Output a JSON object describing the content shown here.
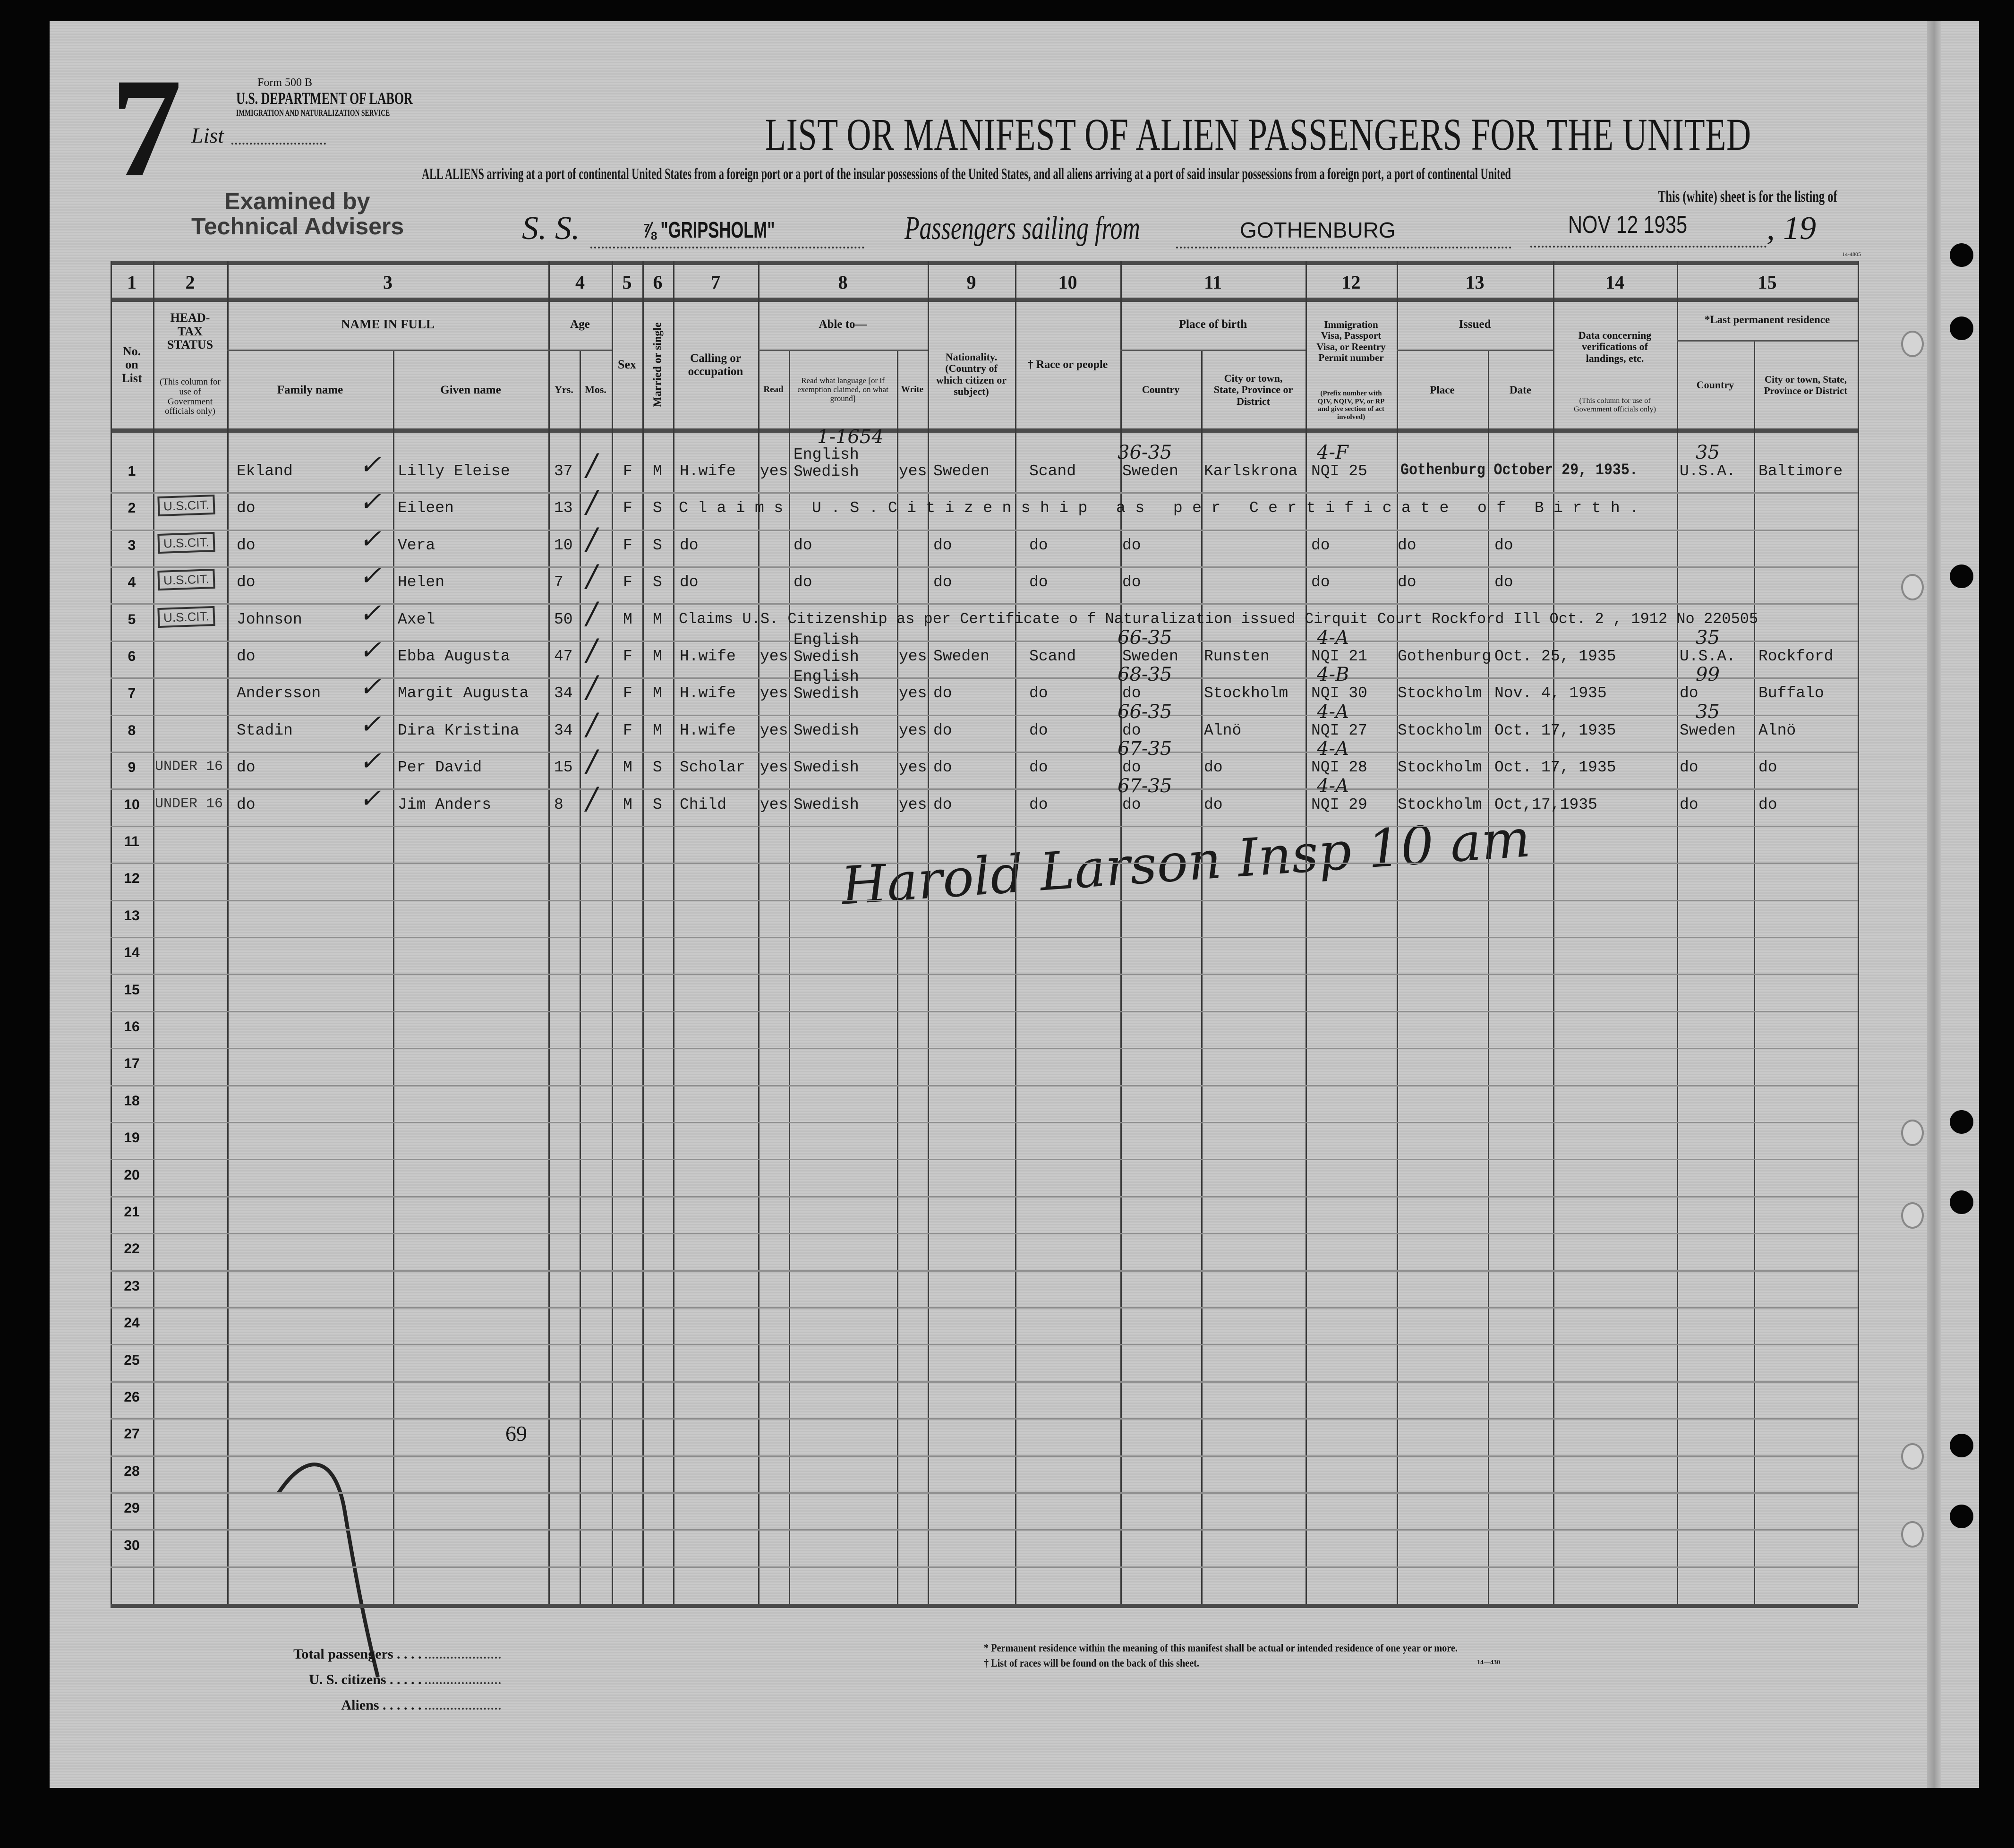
{
  "header": {
    "list_number": "7",
    "list_label": "List",
    "form_number": "Form 500 B",
    "department": "U.S. DEPARTMENT OF LABOR",
    "service": "IMMIGRATION AND NATURALIZATION SERVICE",
    "stamp_line1": "Examined by",
    "stamp_line2": "Technical Advisers",
    "title": "LIST OR MANIFEST OF ALIEN PASSENGERS FOR THE UNITED",
    "subtitle": "ALL ALIENS arriving at a port of continental United States from a foreign port or a port of the insular possessions of the United States, and all aliens arriving at a port of said insular possessions from a foreign port, a port of continental United",
    "sheet_note": "This (white) sheet is for the listing of",
    "ss_label": "S. S.",
    "ship": "⅞ \"GRIPSHOLM\"",
    "sailing_label": "Passengers sailing from",
    "port": "GOTHENBURG",
    "date": "NOV 12 1935",
    "year_label": "19",
    "form_code_top": "14-4805"
  },
  "columns": {
    "numbers": [
      "1",
      "2",
      "3",
      "4",
      "5",
      "6",
      "7",
      "8",
      "9",
      "10",
      "11",
      "12",
      "13",
      "14",
      "15"
    ],
    "no_on_list": "No. on List",
    "head_tax": "HEAD-TAX STATUS",
    "head_tax_note": "(This column for use of Government officials only)",
    "name_in_full": "NAME IN FULL",
    "family_name": "Family name",
    "given_name": "Given name",
    "age": "Age",
    "yrs": "Yrs.",
    "mos": "Mos.",
    "sex": "Sex",
    "married": "Married or single",
    "calling": "Calling or occupation",
    "able_to": "Able to—",
    "read": "Read",
    "read_language": "Read what language [or if exemption claimed, on what ground]",
    "write": "Write",
    "nationality": "Nationality. (Country of which citizen or subject)",
    "race": "† Race or people",
    "place_of_birth": "Place of birth",
    "birth_country": "Country",
    "birth_city": "City or town, State, Province or District",
    "visa": "Immigration Visa, Passport Visa, or Reentry Permit number",
    "visa_note": "(Prefix number with QIV, NQIV, PV, or RP and give section of act involved)",
    "issued": "Issued",
    "issued_place": "Place",
    "issued_date": "Date",
    "data_verif": "Data concerning verifications of landings, etc.",
    "data_verif_note": "(This column for use of Government officials only)",
    "last_residence": "*Last permanent residence",
    "res_country": "Country",
    "res_city": "City or town, State, Province or District"
  },
  "rows": [
    {
      "no": "1",
      "head_tax": "",
      "family": "Ekland",
      "given": "Lilly Eleise",
      "yrs": "37",
      "sex": "F",
      "married": "M",
      "calling": "H.wife",
      "read": "yes",
      "language": "English Swedish",
      "write": "yes",
      "nationality": "Sweden",
      "race": "Scand",
      "birth_country": "Sweden",
      "birth_city": "Karlskrona",
      "visa": "NQI 25",
      "issued_span": "Gothenburg October 29, 1935.",
      "res_country": "U.S.A.",
      "res_city": "Baltimore",
      "notes": {
        "language": "1-1654",
        "birth": "36-35",
        "visa": "4-F",
        "res": "35"
      }
    },
    {
      "no": "2",
      "head_tax": "U.S.CIT.",
      "family": "do",
      "given": "Eileen",
      "yrs": "13",
      "sex": "F",
      "married": "S",
      "span": "Claims U.S.Citizenship as per Certificate of Birth.",
      "span_style": "spaced"
    },
    {
      "no": "3",
      "head_tax": "U.S.CIT.",
      "family": "do",
      "given": "Vera",
      "yrs": "10",
      "sex": "F",
      "married": "S",
      "calling": "do",
      "language": "do",
      "nationality": "do",
      "race": "do",
      "birth_country": "do",
      "visa": "do",
      "issued_place": "do",
      "issued_date": "do"
    },
    {
      "no": "4",
      "head_tax": "U.S.CIT.",
      "family": "do",
      "given": "Helen",
      "yrs": "7",
      "sex": "F",
      "married": "S",
      "calling": "do",
      "language": "do",
      "nationality": "do",
      "race": "do",
      "birth_country": "do",
      "visa": "do",
      "issued_place": "do",
      "issued_date": "do"
    },
    {
      "no": "5",
      "head_tax": "U.S.CIT.",
      "family": "Johnson",
      "given": "Axel",
      "yrs": "50",
      "sex": "M",
      "married": "M",
      "span": "Claims U.S. Citizenship as per Certificate o f Naturalization issued Cirquit Court Rockford Ill Oct. 2 , 1912 No 220505"
    },
    {
      "no": "6",
      "head_tax": "",
      "family": "do",
      "given": "Ebba Augusta",
      "yrs": "47",
      "sex": "F",
      "married": "M",
      "calling": "H.wife",
      "read": "yes",
      "language": "English Swedish",
      "write": "yes",
      "nationality": "Sweden",
      "race": "Scand",
      "birth_country": "Sweden",
      "birth_city": "Runsten",
      "visa": "NQI 21",
      "issued_place": "Gothenburg",
      "issued_date": "Oct. 25, 1935",
      "res_country": "U.S.A.",
      "res_city": "Rockford",
      "notes": {
        "birth": "66-35",
        "visa": "4-A",
        "res": "35"
      }
    },
    {
      "no": "7",
      "head_tax": "",
      "family": "Andersson",
      "given": "Margit Augusta",
      "yrs": "34",
      "sex": "F",
      "married": "M",
      "calling": "H.wife",
      "read": "yes",
      "language": "English Swedish",
      "write": "yes",
      "nationality": "do",
      "race": "do",
      "birth_country": "do",
      "birth_city": "Stockholm",
      "visa": "NQI 30",
      "issued_place": "Stockholm",
      "issued_date": "Nov. 4, 1935",
      "res_country": "do",
      "res_city": "Buffalo",
      "notes": {
        "birth": "68-35",
        "visa": "4-B",
        "res": "99"
      }
    },
    {
      "no": "8",
      "head_tax": "",
      "family": "Stadin",
      "given": "Dira Kristina",
      "yrs": "34",
      "sex": "F",
      "married": "M",
      "calling": "H.wife",
      "read": "yes",
      "language": "Swedish",
      "write": "yes",
      "nationality": "do",
      "race": "do",
      "birth_country": "do",
      "birth_city": "Alnö",
      "visa": "NQI 27",
      "issued_place": "Stockholm",
      "issued_date": "Oct. 17, 1935",
      "res_country": "Sweden",
      "res_city": "Alnö",
      "notes": {
        "birth": "66-35",
        "visa": "4-A",
        "res": "35"
      }
    },
    {
      "no": "9",
      "head_tax": "UNDER 16",
      "family": "do",
      "given": "Per David",
      "yrs": "15",
      "sex": "M",
      "married": "S",
      "calling": "Scholar",
      "read": "yes",
      "language": "Swedish",
      "write": "yes",
      "nationality": "do",
      "race": "do",
      "birth_country": "do",
      "birth_city": "do",
      "visa": "NQI 28",
      "issued_place": "Stockholm",
      "issued_date": "Oct. 17, 1935",
      "res_country": "do",
      "res_city": "do",
      "notes": {
        "birth": "67-35",
        "visa": "4-A"
      }
    },
    {
      "no": "10",
      "head_tax": "UNDER 16",
      "family": "do",
      "given": "Jim Anders",
      "yrs": "8",
      "sex": "M",
      "married": "S",
      "calling": "Child",
      "read": "yes",
      "language": "Swedish",
      "write": "yes",
      "nationality": "do",
      "race": "do",
      "birth_country": "do",
      "birth_city": "do",
      "visa": "NQI 29",
      "issued_place": "Stockholm",
      "issued_date": "Oct,17,1935",
      "res_country": "do",
      "res_city": "do",
      "notes": {
        "birth": "67-35",
        "visa": "4-A"
      }
    }
  ],
  "total_rows": 30,
  "signature": "Harold Larson Insp 10 am",
  "page_mark": "69",
  "footer": {
    "total_passengers": "Total passengers",
    "us_citizens": "U. S. citizens",
    "aliens": "Aliens",
    "note_residence": "* Permanent residence within the meaning of this manifest shall be actual or intended residence of one year or more.",
    "note_races": "† List of races will be found on the back of this sheet.",
    "form_code": "14—430"
  }
}
